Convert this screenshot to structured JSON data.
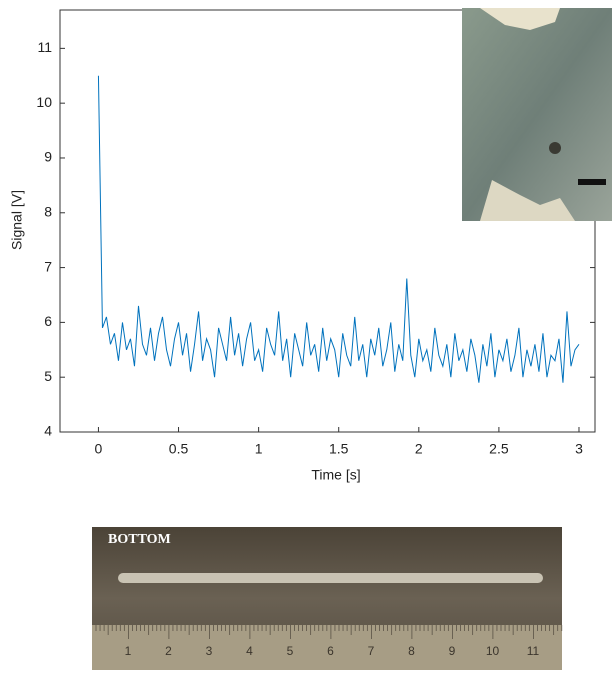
{
  "chart_data": {
    "type": "line",
    "xlabel": "Time [s]",
    "ylabel": "Signal [V]",
    "color": "#0072bd",
    "xlim": [
      -0.24,
      3.1
    ],
    "ylim": [
      4,
      11.7
    ],
    "xticks": [
      0,
      0.5,
      1,
      1.5,
      2,
      2.5,
      3
    ],
    "yticks": [
      4,
      5,
      6,
      7,
      8,
      9,
      10,
      11
    ],
    "x": [
      0,
      0.025,
      0.05,
      0.075,
      0.1,
      0.125,
      0.15,
      0.175,
      0.2,
      0.225,
      0.25,
      0.275,
      0.3,
      0.325,
      0.35,
      0.375,
      0.4,
      0.425,
      0.45,
      0.475,
      0.5,
      0.525,
      0.55,
      0.575,
      0.6,
      0.625,
      0.65,
      0.675,
      0.7,
      0.725,
      0.75,
      0.775,
      0.8,
      0.825,
      0.85,
      0.875,
      0.9,
      0.925,
      0.95,
      0.975,
      1,
      1.025,
      1.05,
      1.075,
      1.1,
      1.125,
      1.15,
      1.175,
      1.2,
      1.225,
      1.25,
      1.275,
      1.3,
      1.325,
      1.35,
      1.375,
      1.4,
      1.425,
      1.45,
      1.475,
      1.5,
      1.525,
      1.55,
      1.575,
      1.6,
      1.625,
      1.65,
      1.675,
      1.7,
      1.725,
      1.75,
      1.775,
      1.8,
      1.825,
      1.85,
      1.875,
      1.9,
      1.925,
      1.95,
      1.975,
      2,
      2.025,
      2.05,
      2.075,
      2.1,
      2.125,
      2.15,
      2.175,
      2.2,
      2.225,
      2.25,
      2.275,
      2.3,
      2.325,
      2.35,
      2.375,
      2.4,
      2.425,
      2.45,
      2.475,
      2.5,
      2.525,
      2.55,
      2.575,
      2.6,
      2.625,
      2.65,
      2.675,
      2.7,
      2.725,
      2.75,
      2.775,
      2.8,
      2.825,
      2.85,
      2.875,
      2.9,
      2.925,
      2.95,
      2.975,
      3
    ],
    "values": [
      10.5,
      5.9,
      6.1,
      5.6,
      5.8,
      5.3,
      6.0,
      5.5,
      5.7,
      5.2,
      6.3,
      5.6,
      5.4,
      5.9,
      5.3,
      5.8,
      6.1,
      5.5,
      5.2,
      5.7,
      6.0,
      5.4,
      5.8,
      5.1,
      5.6,
      6.2,
      5.3,
      5.7,
      5.5,
      5.0,
      5.9,
      5.6,
      5.3,
      6.1,
      5.4,
      5.8,
      5.2,
      5.7,
      6.0,
      5.3,
      5.5,
      5.1,
      5.9,
      5.6,
      5.4,
      6.2,
      5.3,
      5.7,
      5.0,
      5.8,
      5.5,
      5.2,
      6.0,
      5.4,
      5.6,
      5.1,
      5.9,
      5.3,
      5.7,
      5.5,
      5.0,
      5.8,
      5.4,
      5.2,
      6.1,
      5.3,
      5.6,
      5.0,
      5.7,
      5.4,
      5.9,
      5.2,
      5.5,
      6.0,
      5.1,
      5.6,
      5.3,
      6.8,
      5.4,
      5.0,
      5.7,
      5.3,
      5.5,
      5.1,
      5.9,
      5.4,
      5.2,
      5.6,
      5.0,
      5.8,
      5.3,
      5.5,
      5.1,
      5.7,
      5.4,
      4.9,
      5.6,
      5.2,
      5.8,
      5.0,
      5.5,
      5.3,
      5.7,
      5.1,
      5.4,
      5.9,
      5.0,
      5.5,
      5.2,
      5.6,
      5.1,
      5.8,
      5.0,
      5.4,
      5.3,
      5.7,
      4.9,
      6.2,
      5.2,
      5.5,
      5.6
    ]
  },
  "photo": {
    "label": "BOTTOM",
    "ruler": [
      "1",
      "2",
      "3",
      "4",
      "5",
      "6",
      "7",
      "8",
      "9",
      "10",
      "11"
    ]
  }
}
